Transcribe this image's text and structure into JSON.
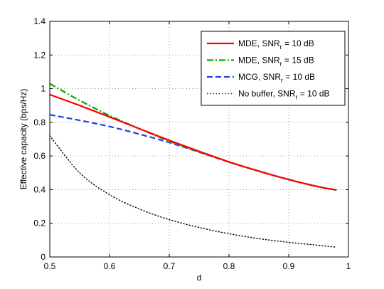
{
  "chart_data": {
    "type": "line",
    "title": "",
    "xlabel": "d",
    "ylabel": "Effective capacity (bps/Hz)",
    "xlim": [
      0.5,
      1.0
    ],
    "ylim": [
      0,
      1.4
    ],
    "xticks": [
      0.5,
      0.6,
      0.7,
      0.8,
      0.9,
      1.0
    ],
    "xtick_labels": [
      "0.5",
      "0.6",
      "0.7",
      "0.8",
      "0.9",
      "1"
    ],
    "yticks": [
      0,
      0.2,
      0.4,
      0.6,
      0.8,
      1.0,
      1.2,
      1.4
    ],
    "ytick_labels": [
      "0",
      "0.2",
      "0.4",
      "0.6",
      "0.8",
      "1",
      "1.2",
      "1.4"
    ],
    "grid": true,
    "grid_style": "dotted",
    "legend_position": "top-right",
    "series": [
      {
        "name": "MDE, SNR",
        "name_sub": "r",
        "name_suffix": " = 10 dB",
        "color": "#ff0000",
        "style": "solid",
        "x": [
          0.5,
          0.55,
          0.6,
          0.65,
          0.7,
          0.75,
          0.8,
          0.85,
          0.9,
          0.95,
          0.98
        ],
        "y": [
          0.965,
          0.9,
          0.832,
          0.762,
          0.693,
          0.628,
          0.565,
          0.51,
          0.46,
          0.417,
          0.398
        ]
      },
      {
        "name": "MDE, SNR",
        "name_sub": "r",
        "name_suffix": " = 15 dB",
        "color": "#00aa00",
        "style": "dashdot",
        "x": [
          0.5,
          0.55,
          0.6,
          0.65,
          0.7,
          0.75,
          0.8,
          0.85,
          0.9,
          0.95,
          0.98
        ],
        "y": [
          1.03,
          0.93,
          0.84,
          0.762,
          0.688,
          0.625,
          0.564,
          0.51,
          0.46,
          0.417,
          0.398
        ]
      },
      {
        "name": "MCG, SNR",
        "name_sub": "r",
        "name_suffix": " = 10 dB",
        "color": "#2b3cf0",
        "style": "dashed",
        "x": [
          0.5,
          0.55,
          0.6,
          0.65,
          0.7,
          0.75,
          0.8,
          0.85,
          0.9,
          0.95,
          0.98
        ],
        "y": [
          0.845,
          0.812,
          0.775,
          0.73,
          0.68,
          0.623,
          0.564,
          0.51,
          0.46,
          0.417,
          0.398
        ]
      },
      {
        "name": "No buffer, SNR",
        "name_sub": "r",
        "name_suffix": " = 10 dB",
        "color": "#000000",
        "style": "dotted",
        "x": [
          0.5,
          0.55,
          0.6,
          0.65,
          0.7,
          0.75,
          0.8,
          0.85,
          0.9,
          0.95,
          0.98
        ],
        "y": [
          0.72,
          0.5,
          0.37,
          0.285,
          0.222,
          0.175,
          0.138,
          0.109,
          0.087,
          0.069,
          0.058
        ]
      }
    ]
  }
}
